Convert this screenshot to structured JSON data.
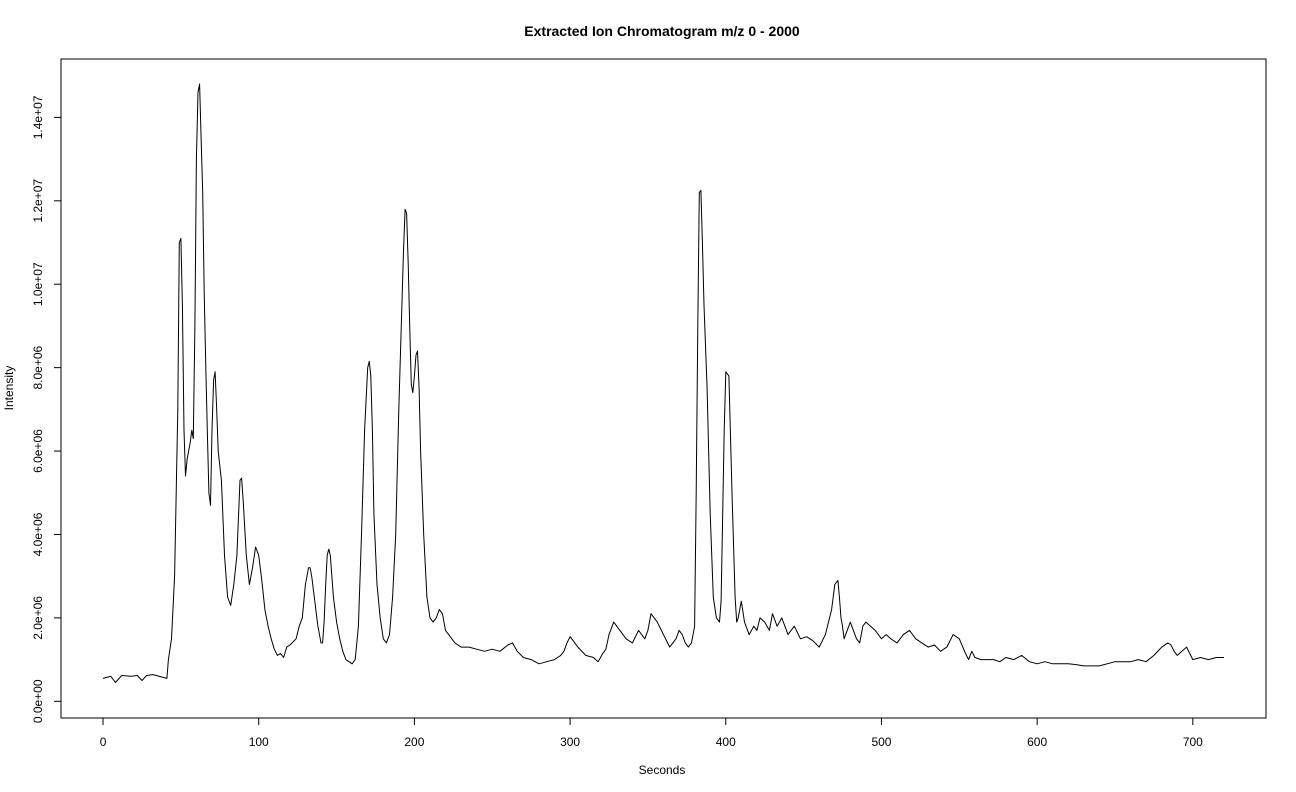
{
  "chart_data": {
    "type": "line",
    "title": "Extracted Ion Chromatogram  m/z  0 - 2000",
    "xlabel": "Seconds",
    "ylabel": "Intensity",
    "xlim": [
      -27,
      747
    ],
    "ylim": [
      -400000,
      15400000
    ],
    "x_ticks": [
      0,
      100,
      200,
      300,
      400,
      500,
      600,
      700
    ],
    "x_tick_labels": [
      "0",
      "100",
      "200",
      "300",
      "400",
      "500",
      "600",
      "700"
    ],
    "y_ticks": [
      0,
      2000000,
      4000000,
      6000000,
      8000000,
      10000000,
      12000000,
      14000000
    ],
    "y_tick_labels": [
      "0.0e+00",
      "2.0e+06",
      "4.0e+06",
      "6.0e+06",
      "8.0e+06",
      "1.0e+07",
      "1.2e+07",
      "1.4e+07"
    ],
    "grid": false,
    "series": [
      {
        "color": "#000000",
        "x": [
          0,
          3,
          5,
          8,
          12,
          18,
          22,
          25,
          28,
          32,
          38,
          41,
          42,
          44,
          46,
          48,
          49,
          50,
          51,
          52,
          53,
          54,
          56,
          57,
          58,
          59,
          60,
          61,
          62,
          63,
          64,
          65,
          66,
          67,
          68,
          69,
          70,
          71,
          72,
          73,
          74,
          76,
          78,
          80,
          82,
          84,
          86,
          88,
          89,
          90,
          92,
          94,
          96,
          98,
          100,
          102,
          104,
          106,
          108,
          110,
          112,
          114,
          116,
          118,
          120,
          124,
          126,
          128,
          130,
          132,
          133,
          134,
          136,
          138,
          140,
          141,
          142,
          143,
          144,
          145,
          146,
          148,
          150,
          152,
          154,
          156,
          158,
          160,
          162,
          164,
          166,
          168,
          170,
          171,
          172,
          173,
          174,
          176,
          178,
          180,
          182,
          184,
          186,
          188,
          190,
          192,
          193,
          194,
          195,
          196,
          197,
          198,
          199,
          200,
          201,
          202,
          203,
          204,
          206,
          208,
          210,
          212,
          214,
          216,
          218,
          220,
          222,
          224,
          226,
          228,
          230,
          235,
          240,
          245,
          250,
          255,
          260,
          263,
          266,
          270,
          275,
          280,
          285,
          290,
          292,
          294,
          296,
          298,
          300,
          305,
          310,
          315,
          318,
          321,
          323,
          325,
          328,
          332,
          336,
          340,
          344,
          348,
          350,
          352,
          356,
          360,
          364,
          368,
          370,
          372,
          374,
          376,
          378,
          380,
          381,
          382,
          383,
          384,
          385,
          386,
          388,
          390,
          392,
          394,
          396,
          397,
          398,
          399,
          400,
          402,
          404,
          406,
          407,
          408,
          410,
          412,
          415,
          418,
          420,
          422,
          425,
          428,
          430,
          433,
          436,
          440,
          444,
          448,
          452,
          456,
          460,
          464,
          468,
          470,
          472,
          473,
          474,
          475,
          476,
          478,
          480,
          482,
          484,
          486,
          488,
          490,
          493,
          496,
          500,
          503,
          506,
          510,
          514,
          518,
          522,
          526,
          530,
          534,
          538,
          542,
          546,
          550,
          554,
          556,
          558,
          560,
          564,
          568,
          572,
          576,
          580,
          585,
          590,
          595,
          600,
          605,
          610,
          615,
          620,
          625,
          630,
          640,
          650,
          660,
          665,
          670,
          675,
          680,
          684,
          686,
          688,
          690,
          693,
          696,
          700,
          705,
          710,
          715,
          720
        ],
        "y": [
          550000,
          580000,
          600000,
          450000,
          620000,
          600000,
          620000,
          500000,
          620000,
          640000,
          580000,
          550000,
          1000000,
          1500000,
          3000000,
          7000000,
          11000000,
          11100000,
          9500000,
          6500000,
          5400000,
          5800000,
          6200000,
          6500000,
          6300000,
          9000000,
          13000000,
          14600000,
          14800000,
          13500000,
          12200000,
          9800000,
          8000000,
          6500000,
          5000000,
          4700000,
          6500000,
          7700000,
          7900000,
          7000000,
          6000000,
          5300000,
          3500000,
          2500000,
          2300000,
          2800000,
          3500000,
          5300000,
          5350000,
          4800000,
          3500000,
          2800000,
          3200000,
          3700000,
          3500000,
          2900000,
          2200000,
          1800000,
          1500000,
          1250000,
          1100000,
          1150000,
          1050000,
          1300000,
          1350000,
          1500000,
          1800000,
          2000000,
          2800000,
          3200000,
          3200000,
          3000000,
          2400000,
          1800000,
          1400000,
          1400000,
          1900000,
          2800000,
          3500000,
          3650000,
          3500000,
          2500000,
          1900000,
          1500000,
          1200000,
          1000000,
          950000,
          900000,
          1000000,
          1800000,
          4000000,
          6500000,
          8000000,
          8150000,
          7800000,
          6500000,
          4500000,
          2800000,
          2000000,
          1500000,
          1400000,
          1600000,
          2500000,
          4000000,
          7000000,
          9500000,
          10800000,
          11800000,
          11700000,
          10500000,
          9000000,
          7600000,
          7400000,
          7800000,
          8300000,
          8400000,
          7500000,
          6000000,
          4000000,
          2500000,
          2000000,
          1900000,
          2000000,
          2200000,
          2100000,
          1700000,
          1600000,
          1500000,
          1400000,
          1350000,
          1300000,
          1300000,
          1250000,
          1200000,
          1250000,
          1200000,
          1350000,
          1400000,
          1200000,
          1050000,
          1000000,
          900000,
          950000,
          1000000,
          1050000,
          1100000,
          1200000,
          1400000,
          1550000,
          1300000,
          1100000,
          1050000,
          950000,
          1150000,
          1250000,
          1600000,
          1900000,
          1700000,
          1500000,
          1400000,
          1700000,
          1500000,
          1700000,
          2100000,
          1900000,
          1600000,
          1300000,
          1500000,
          1700000,
          1600000,
          1400000,
          1300000,
          1400000,
          1800000,
          5000000,
          9000000,
          12200000,
          12250000,
          11000000,
          9500000,
          7500000,
          4500000,
          2500000,
          2000000,
          1900000,
          2400000,
          4500000,
          6500000,
          7900000,
          7800000,
          5000000,
          2500000,
          1900000,
          2000000,
          2400000,
          1900000,
          1600000,
          1800000,
          1700000,
          2000000,
          1900000,
          1700000,
          2100000,
          1800000,
          2000000,
          1600000,
          1800000,
          1500000,
          1550000,
          1450000,
          1300000,
          1600000,
          2200000,
          2800000,
          2900000,
          2500000,
          2000000,
          1800000,
          1500000,
          1700000,
          1900000,
          1700000,
          1500000,
          1400000,
          1800000,
          1900000,
          1800000,
          1700000,
          1500000,
          1600000,
          1500000,
          1400000,
          1600000,
          1700000,
          1500000,
          1400000,
          1300000,
          1350000,
          1200000,
          1300000,
          1600000,
          1500000,
          1150000,
          1000000,
          1200000,
          1050000,
          1000000,
          1000000,
          1000000,
          950000,
          1050000,
          1000000,
          1100000,
          950000,
          900000,
          950000,
          900000,
          900000,
          900000,
          880000,
          850000,
          850000,
          950000,
          950000,
          1000000,
          950000,
          1100000,
          1300000,
          1400000,
          1350000,
          1200000,
          1100000,
          1200000,
          1300000,
          1000000,
          1050000,
          1000000,
          1050000,
          1050000
        ]
      }
    ]
  }
}
